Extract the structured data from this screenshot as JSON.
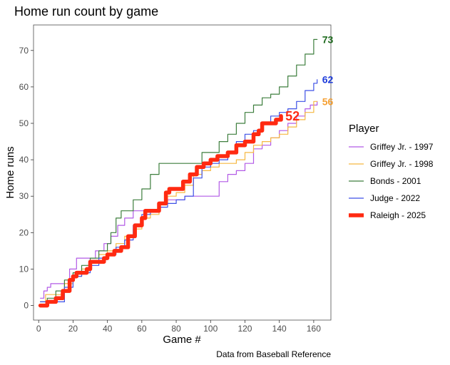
{
  "chart_data": {
    "type": "line",
    "title": "Home run count by game",
    "xlabel": "Game #",
    "ylabel": "Home runs",
    "caption": "Data from Baseball Reference",
    "xlim": [
      -3,
      170
    ],
    "ylim": [
      -4,
      77
    ],
    "x_ticks": [
      0,
      20,
      40,
      60,
      80,
      100,
      120,
      140,
      160
    ],
    "y_ticks": [
      0,
      10,
      20,
      30,
      40,
      50,
      60,
      70
    ],
    "x_tick_labels": [
      "0",
      "20",
      "40",
      "60",
      "80",
      "100",
      "120",
      "140",
      "160"
    ],
    "y_tick_labels": [
      "0",
      "10",
      "20",
      "30",
      "40",
      "50",
      "60",
      "70"
    ],
    "grid": false,
    "legend": {
      "title": "Player",
      "position": "right"
    },
    "series": [
      {
        "name": "Griffey Jr. - 1997",
        "color": "#b25ae6",
        "width": 1.2,
        "end_label": "",
        "points": [
          [
            1,
            2
          ],
          [
            3,
            4
          ],
          [
            5,
            5
          ],
          [
            7,
            6
          ],
          [
            15,
            6
          ],
          [
            18,
            10
          ],
          [
            22,
            13
          ],
          [
            30,
            13
          ],
          [
            33,
            15
          ],
          [
            38,
            17
          ],
          [
            42,
            19
          ],
          [
            46,
            22
          ],
          [
            50,
            24
          ],
          [
            55,
            26
          ],
          [
            60,
            26
          ],
          [
            65,
            26
          ],
          [
            70,
            28
          ],
          [
            75,
            29
          ],
          [
            80,
            29
          ],
          [
            85,
            30
          ],
          [
            95,
            30
          ],
          [
            100,
            30
          ],
          [
            105,
            34
          ],
          [
            110,
            36
          ],
          [
            115,
            37
          ],
          [
            120,
            39
          ],
          [
            125,
            43
          ],
          [
            130,
            44
          ],
          [
            135,
            46
          ],
          [
            140,
            48
          ],
          [
            145,
            50
          ],
          [
            150,
            52
          ],
          [
            155,
            54
          ],
          [
            158,
            55
          ],
          [
            162,
            56
          ]
        ]
      },
      {
        "name": "Griffey Jr. - 1998",
        "color": "#f5b841",
        "width": 1.2,
        "end_label": "56",
        "end_label_color": "#f5a033",
        "points": [
          [
            1,
            1
          ],
          [
            4,
            3
          ],
          [
            10,
            3
          ],
          [
            15,
            6
          ],
          [
            20,
            8
          ],
          [
            25,
            10
          ],
          [
            30,
            12
          ],
          [
            35,
            14
          ],
          [
            40,
            15
          ],
          [
            45,
            17
          ],
          [
            50,
            19
          ],
          [
            55,
            21
          ],
          [
            60,
            24
          ],
          [
            65,
            25
          ],
          [
            70,
            28
          ],
          [
            75,
            30
          ],
          [
            80,
            31
          ],
          [
            85,
            33
          ],
          [
            90,
            36
          ],
          [
            95,
            37
          ],
          [
            100,
            38
          ],
          [
            105,
            39
          ],
          [
            110,
            39
          ],
          [
            115,
            40
          ],
          [
            120,
            42
          ],
          [
            125,
            44
          ],
          [
            130,
            45
          ],
          [
            135,
            46
          ],
          [
            140,
            47
          ],
          [
            145,
            49
          ],
          [
            150,
            51
          ],
          [
            155,
            53
          ],
          [
            160,
            56
          ],
          [
            162,
            56
          ]
        ]
      },
      {
        "name": "Bonds - 2001",
        "color": "#3d7e3d",
        "width": 1.2,
        "end_label": "73",
        "end_label_color": "#1f6b1f",
        "points": [
          [
            1,
            1
          ],
          [
            5,
            2
          ],
          [
            10,
            4
          ],
          [
            15,
            7
          ],
          [
            20,
            9
          ],
          [
            25,
            11
          ],
          [
            30,
            13
          ],
          [
            35,
            15
          ],
          [
            40,
            17
          ],
          [
            42,
            20
          ],
          [
            45,
            24
          ],
          [
            48,
            26
          ],
          [
            50,
            26
          ],
          [
            55,
            29
          ],
          [
            60,
            32
          ],
          [
            65,
            36
          ],
          [
            70,
            39
          ],
          [
            75,
            39
          ],
          [
            80,
            39
          ],
          [
            85,
            39
          ],
          [
            90,
            39
          ],
          [
            95,
            42
          ],
          [
            100,
            42
          ],
          [
            105,
            45
          ],
          [
            110,
            47
          ],
          [
            115,
            50
          ],
          [
            120,
            53
          ],
          [
            125,
            55
          ],
          [
            130,
            57
          ],
          [
            135,
            58
          ],
          [
            140,
            60
          ],
          [
            145,
            63
          ],
          [
            150,
            66
          ],
          [
            155,
            69
          ],
          [
            160,
            73
          ],
          [
            162,
            73
          ]
        ]
      },
      {
        "name": "Judge - 2022",
        "color": "#3d50e6",
        "width": 1.2,
        "end_label": "62",
        "end_label_color": "#1f3ddb",
        "points": [
          [
            1,
            1
          ],
          [
            5,
            1
          ],
          [
            10,
            1
          ],
          [
            15,
            5
          ],
          [
            20,
            8
          ],
          [
            25,
            9
          ],
          [
            30,
            11
          ],
          [
            35,
            13
          ],
          [
            40,
            14
          ],
          [
            45,
            16
          ],
          [
            50,
            18
          ],
          [
            55,
            22
          ],
          [
            60,
            25
          ],
          [
            65,
            26
          ],
          [
            70,
            27
          ],
          [
            75,
            28
          ],
          [
            80,
            29
          ],
          [
            85,
            30
          ],
          [
            90,
            35
          ],
          [
            95,
            38
          ],
          [
            100,
            39
          ],
          [
            105,
            40
          ],
          [
            110,
            42
          ],
          [
            115,
            45
          ],
          [
            120,
            47
          ],
          [
            125,
            48
          ],
          [
            130,
            50
          ],
          [
            135,
            52
          ],
          [
            140,
            53
          ],
          [
            145,
            54
          ],
          [
            150,
            56
          ],
          [
            155,
            59
          ],
          [
            160,
            61
          ],
          [
            162,
            62
          ]
        ]
      },
      {
        "name": "Raleigh - 2025",
        "color": "#ff2a11",
        "width": 5.5,
        "end_label": "52",
        "end_label_color": "#ff2a11",
        "points": [
          [
            1,
            0
          ],
          [
            4,
            0
          ],
          [
            5,
            1
          ],
          [
            10,
            2
          ],
          [
            14,
            4
          ],
          [
            18,
            7
          ],
          [
            20,
            8
          ],
          [
            22,
            9
          ],
          [
            28,
            10
          ],
          [
            30,
            12
          ],
          [
            38,
            13
          ],
          [
            40,
            14
          ],
          [
            44,
            15
          ],
          [
            48,
            16
          ],
          [
            52,
            19
          ],
          [
            56,
            22
          ],
          [
            60,
            24
          ],
          [
            62,
            26
          ],
          [
            66,
            26
          ],
          [
            70,
            28
          ],
          [
            74,
            31
          ],
          [
            76,
            32
          ],
          [
            80,
            32
          ],
          [
            84,
            34
          ],
          [
            88,
            36
          ],
          [
            92,
            38
          ],
          [
            96,
            39
          ],
          [
            100,
            40
          ],
          [
            104,
            41
          ],
          [
            110,
            42
          ],
          [
            115,
            44
          ],
          [
            120,
            45
          ],
          [
            125,
            47
          ],
          [
            128,
            48
          ],
          [
            130,
            50
          ],
          [
            135,
            50
          ],
          [
            138,
            51
          ],
          [
            141,
            52
          ]
        ]
      }
    ]
  }
}
